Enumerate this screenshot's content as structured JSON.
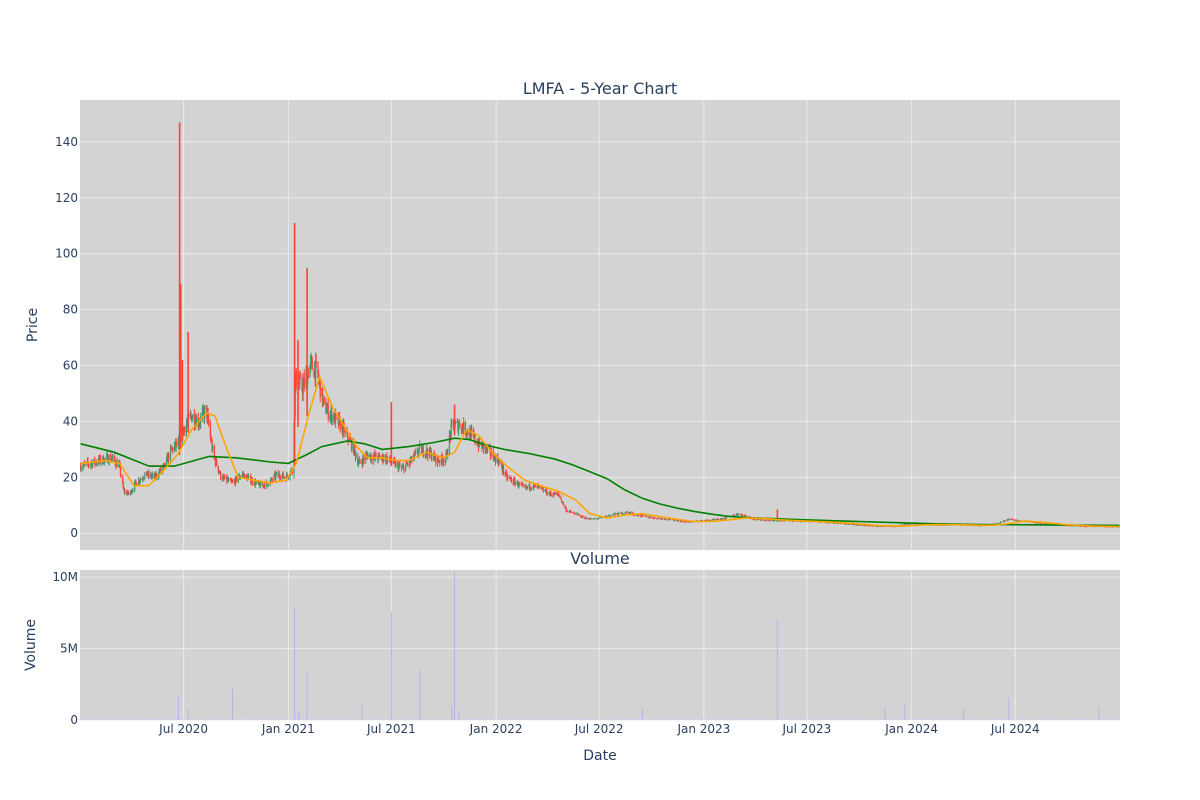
{
  "chart_data": {
    "type": "candlestick",
    "title": "LMFA - 5-Year Chart",
    "x_axis": {
      "label": "Date",
      "range": [
        "2020-01-01",
        "2025-01-01"
      ],
      "tick_labels": [
        "Jul 2020",
        "Jan 2021",
        "Jul 2021",
        "Jan 2022",
        "Jul 2022",
        "Jan 2023",
        "Jul 2023",
        "Jan 2024",
        "Jul 2024"
      ],
      "tick_dates": [
        "2020-07-01",
        "2021-01-01",
        "2021-07-01",
        "2022-01-01",
        "2022-07-01",
        "2023-01-01",
        "2023-07-01",
        "2024-01-01",
        "2024-07-01"
      ]
    },
    "price_panel": {
      "ylabel": "Price",
      "ylim": [
        -6,
        155
      ],
      "yticks": [
        0,
        20,
        40,
        60,
        80,
        100,
        120,
        140
      ],
      "ytick_labels": [
        "0",
        "20",
        "40",
        "60",
        "80",
        "100",
        "120",
        "140"
      ],
      "grid": true,
      "colors": {
        "up": "#3d9970",
        "down": "#ff4136",
        "ma_short": "#ffa500",
        "ma_long": "#008000",
        "background": "#d3d3d3"
      },
      "spikes": [
        {
          "date": "2020-06-24",
          "high": 147,
          "low": 28
        },
        {
          "date": "2020-06-26",
          "high": 89,
          "low": 30
        },
        {
          "date": "2020-06-29",
          "high": 62,
          "low": 33
        },
        {
          "date": "2020-07-09",
          "high": 72,
          "low": 36
        },
        {
          "date": "2021-01-12",
          "high": 111,
          "low": 24
        },
        {
          "date": "2021-01-18",
          "high": 69,
          "low": 38
        },
        {
          "date": "2021-02-03",
          "high": 95,
          "low": 42
        },
        {
          "date": "2021-07-01",
          "high": 47,
          "low": 24
        },
        {
          "date": "2021-10-20",
          "high": 46,
          "low": 35
        },
        {
          "date": "2023-05-10",
          "high": 8.5,
          "low": 4.5
        }
      ],
      "close_series": [
        [
          "2020-01-02",
          24
        ],
        [
          "2020-01-20",
          25
        ],
        [
          "2020-02-05",
          26
        ],
        [
          "2020-02-25",
          27
        ],
        [
          "2020-03-10",
          24
        ],
        [
          "2020-03-18",
          15
        ],
        [
          "2020-03-28",
          14
        ],
        [
          "2020-04-08",
          18
        ],
        [
          "2020-04-25",
          21
        ],
        [
          "2020-05-12",
          20
        ],
        [
          "2020-05-28",
          24
        ],
        [
          "2020-06-10",
          30
        ],
        [
          "2020-06-22",
          32
        ],
        [
          "2020-07-02",
          38
        ],
        [
          "2020-07-15",
          42
        ],
        [
          "2020-07-28",
          40
        ],
        [
          "2020-08-10",
          44
        ],
        [
          "2020-08-22",
          28
        ],
        [
          "2020-09-05",
          20
        ],
        [
          "2020-09-25",
          18
        ],
        [
          "2020-10-12",
          21
        ],
        [
          "2020-10-28",
          19
        ],
        [
          "2020-11-12",
          17
        ],
        [
          "2020-11-28",
          18
        ],
        [
          "2020-12-12",
          21
        ],
        [
          "2020-12-28",
          20
        ],
        [
          "2021-01-08",
          23
        ],
        [
          "2021-01-14",
          55
        ],
        [
          "2021-01-26",
          52
        ],
        [
          "2021-02-08",
          60
        ],
        [
          "2021-02-20",
          58
        ],
        [
          "2021-03-05",
          45
        ],
        [
          "2021-03-20",
          42
        ],
        [
          "2021-04-05",
          38
        ],
        [
          "2021-04-20",
          33
        ],
        [
          "2021-05-05",
          25
        ],
        [
          "2021-05-20",
          28
        ],
        [
          "2021-06-05",
          27
        ],
        [
          "2021-06-20",
          27
        ],
        [
          "2021-07-05",
          25
        ],
        [
          "2021-07-20",
          23
        ],
        [
          "2021-08-05",
          26
        ],
        [
          "2021-08-20",
          30
        ],
        [
          "2021-09-05",
          29
        ],
        [
          "2021-09-20",
          26
        ],
        [
          "2021-10-05",
          27
        ],
        [
          "2021-10-15",
          38
        ],
        [
          "2021-10-30",
          39
        ],
        [
          "2021-11-15",
          36
        ],
        [
          "2021-12-01",
          32
        ],
        [
          "2021-12-15",
          30
        ],
        [
          "2022-01-05",
          26
        ],
        [
          "2022-01-20",
          20
        ],
        [
          "2022-02-05",
          18
        ],
        [
          "2022-02-20",
          16
        ],
        [
          "2022-03-05",
          17
        ],
        [
          "2022-03-20",
          16
        ],
        [
          "2022-04-05",
          14
        ],
        [
          "2022-04-20",
          14
        ],
        [
          "2022-05-05",
          8
        ],
        [
          "2022-05-20",
          7
        ],
        [
          "2022-06-05",
          5.5
        ],
        [
          "2022-06-20",
          5
        ],
        [
          "2022-07-05",
          5.5
        ],
        [
          "2022-07-20",
          6.5
        ],
        [
          "2022-08-05",
          7
        ],
        [
          "2022-08-20",
          7.5
        ],
        [
          "2022-09-05",
          6.5
        ],
        [
          "2022-09-20",
          6
        ],
        [
          "2022-10-05",
          5.5
        ],
        [
          "2022-11-01",
          5
        ],
        [
          "2022-12-01",
          4
        ],
        [
          "2023-01-01",
          4.5
        ],
        [
          "2023-02-01",
          5
        ],
        [
          "2023-03-01",
          7
        ],
        [
          "2023-04-01",
          5
        ],
        [
          "2023-05-01",
          4.5
        ],
        [
          "2023-06-01",
          4.5
        ],
        [
          "2023-07-01",
          4.3
        ],
        [
          "2023-08-01",
          4
        ],
        [
          "2023-09-01",
          3.5
        ],
        [
          "2023-10-01",
          3
        ],
        [
          "2023-11-01",
          2.5
        ],
        [
          "2023-12-01",
          2.5
        ],
        [
          "2024-01-01",
          3.5
        ],
        [
          "2024-02-01",
          3
        ],
        [
          "2024-03-01",
          3
        ],
        [
          "2024-04-01",
          3
        ],
        [
          "2024-05-01",
          2.7
        ],
        [
          "2024-06-01",
          3.5
        ],
        [
          "2024-06-20",
          5
        ],
        [
          "2024-07-10",
          4.5
        ],
        [
          "2024-08-01",
          4
        ],
        [
          "2024-09-01",
          3
        ],
        [
          "2024-10-01",
          2.8
        ],
        [
          "2024-11-01",
          2.5
        ],
        [
          "2024-12-01",
          2.5
        ],
        [
          "2024-12-31",
          2.3
        ]
      ],
      "ma_short_series": [
        [
          "2020-01-02",
          25
        ],
        [
          "2020-02-15",
          26
        ],
        [
          "2020-03-10",
          25
        ],
        [
          "2020-04-05",
          17
        ],
        [
          "2020-05-01",
          17
        ],
        [
          "2020-05-25",
          22
        ],
        [
          "2020-06-20",
          28
        ],
        [
          "2020-07-15",
          37
        ],
        [
          "2020-08-10",
          43
        ],
        [
          "2020-08-25",
          42
        ],
        [
          "2020-09-15",
          30
        ],
        [
          "2020-10-05",
          20
        ],
        [
          "2020-11-01",
          19
        ],
        [
          "2020-12-01",
          18
        ],
        [
          "2020-12-28",
          19
        ],
        [
          "2021-01-15",
          25
        ],
        [
          "2021-02-05",
          42
        ],
        [
          "2021-02-25",
          56
        ],
        [
          "2021-03-20",
          45
        ],
        [
          "2021-04-10",
          38
        ],
        [
          "2021-05-01",
          31
        ],
        [
          "2021-05-20",
          27
        ],
        [
          "2021-06-15",
          27
        ],
        [
          "2021-07-10",
          26
        ],
        [
          "2021-08-01",
          26
        ],
        [
          "2021-09-01",
          29
        ],
        [
          "2021-10-01",
          27
        ],
        [
          "2021-10-20",
          29
        ],
        [
          "2021-11-10",
          37
        ],
        [
          "2021-12-01",
          35
        ],
        [
          "2021-12-25",
          29
        ],
        [
          "2022-01-20",
          24
        ],
        [
          "2022-02-20",
          19
        ],
        [
          "2022-03-20",
          17
        ],
        [
          "2022-04-20",
          15
        ],
        [
          "2022-05-20",
          12
        ],
        [
          "2022-06-15",
          7
        ],
        [
          "2022-07-15",
          5.5
        ],
        [
          "2022-08-15",
          6.5
        ],
        [
          "2022-09-15",
          7
        ],
        [
          "2022-10-15",
          6
        ],
        [
          "2022-11-15",
          5
        ],
        [
          "2022-12-15",
          4.2
        ],
        [
          "2023-01-15",
          4.2
        ],
        [
          "2023-02-15",
          4.8
        ],
        [
          "2023-03-15",
          5.5
        ],
        [
          "2023-04-15",
          5.3
        ],
        [
          "2023-05-15",
          4.8
        ],
        [
          "2023-06-15",
          4.5
        ],
        [
          "2023-08-01",
          4.1
        ],
        [
          "2023-09-15",
          3.6
        ],
        [
          "2023-11-01",
          2.8
        ],
        [
          "2023-12-15",
          2.5
        ],
        [
          "2024-01-15",
          2.9
        ],
        [
          "2024-02-15",
          3.1
        ],
        [
          "2024-04-01",
          3
        ],
        [
          "2024-05-15",
          2.8
        ],
        [
          "2024-06-15",
          3.3
        ],
        [
          "2024-07-15",
          4.3
        ],
        [
          "2024-08-15",
          4
        ],
        [
          "2024-10-01",
          3
        ],
        [
          "2024-11-15",
          2.6
        ],
        [
          "2024-12-31",
          2.4
        ]
      ],
      "ma_long_series": [
        [
          "2020-01-02",
          32
        ],
        [
          "2020-03-01",
          29
        ],
        [
          "2020-05-01",
          24
        ],
        [
          "2020-06-15",
          24
        ],
        [
          "2020-08-15",
          27.5
        ],
        [
          "2020-10-01",
          27
        ],
        [
          "2020-12-01",
          25.5
        ],
        [
          "2021-01-01",
          25
        ],
        [
          "2021-02-01",
          28
        ],
        [
          "2021-03-01",
          31
        ],
        [
          "2021-04-15",
          33
        ],
        [
          "2021-05-15",
          32
        ],
        [
          "2021-06-15",
          30
        ],
        [
          "2021-08-01",
          31
        ],
        [
          "2021-09-15",
          32.5
        ],
        [
          "2021-10-20",
          34
        ],
        [
          "2021-11-15",
          33.5
        ],
        [
          "2021-12-15",
          31.5
        ],
        [
          "2022-01-15",
          30
        ],
        [
          "2022-03-01",
          28.5
        ],
        [
          "2022-04-15",
          26.5
        ],
        [
          "2022-05-15",
          24.5
        ],
        [
          "2022-06-15",
          22
        ],
        [
          "2022-07-15",
          19.5
        ],
        [
          "2022-08-15",
          15.5
        ],
        [
          "2022-09-15",
          12.5
        ],
        [
          "2022-10-15",
          10.5
        ],
        [
          "2022-11-15",
          9
        ],
        [
          "2022-12-15",
          7.8
        ],
        [
          "2023-01-15",
          6.8
        ],
        [
          "2023-02-15",
          6
        ],
        [
          "2023-04-01",
          5.5
        ],
        [
          "2023-06-01",
          5
        ],
        [
          "2023-08-01",
          4.6
        ],
        [
          "2023-10-01",
          4.2
        ],
        [
          "2023-12-01",
          3.8
        ],
        [
          "2024-02-01",
          3.4
        ],
        [
          "2024-05-01",
          3.1
        ],
        [
          "2024-08-01",
          3
        ],
        [
          "2024-10-01",
          2.9
        ],
        [
          "2024-12-31",
          2.8
        ]
      ]
    },
    "volume_panel": {
      "title": "Volume",
      "ylabel": "Volume",
      "ylim": [
        0,
        10500000
      ],
      "yticks": [
        0,
        5000000,
        10000000
      ],
      "ytick_labels": [
        "0",
        "5M",
        "10M"
      ],
      "grid": true,
      "bar_color": "#c8c8f0",
      "spikes": [
        [
          "2020-06-22",
          1600000
        ],
        [
          "2020-07-09",
          700000
        ],
        [
          "2020-09-25",
          2200000
        ],
        [
          "2021-01-12",
          7800000
        ],
        [
          "2021-01-20",
          600000
        ],
        [
          "2021-02-03",
          3300000
        ],
        [
          "2021-05-10",
          1200000
        ],
        [
          "2021-07-01",
          7600000
        ],
        [
          "2021-08-20",
          3500000
        ],
        [
          "2021-10-15",
          1000000
        ],
        [
          "2021-10-20",
          10400000
        ],
        [
          "2021-10-28",
          600000
        ],
        [
          "2022-09-15",
          800000
        ],
        [
          "2023-05-10",
          7000000
        ],
        [
          "2023-11-15",
          800000
        ],
        [
          "2023-12-20",
          1100000
        ],
        [
          "2024-04-01",
          800000
        ],
        [
          "2024-06-20",
          1500000
        ],
        [
          "2024-11-25",
          900000
        ]
      ]
    }
  }
}
